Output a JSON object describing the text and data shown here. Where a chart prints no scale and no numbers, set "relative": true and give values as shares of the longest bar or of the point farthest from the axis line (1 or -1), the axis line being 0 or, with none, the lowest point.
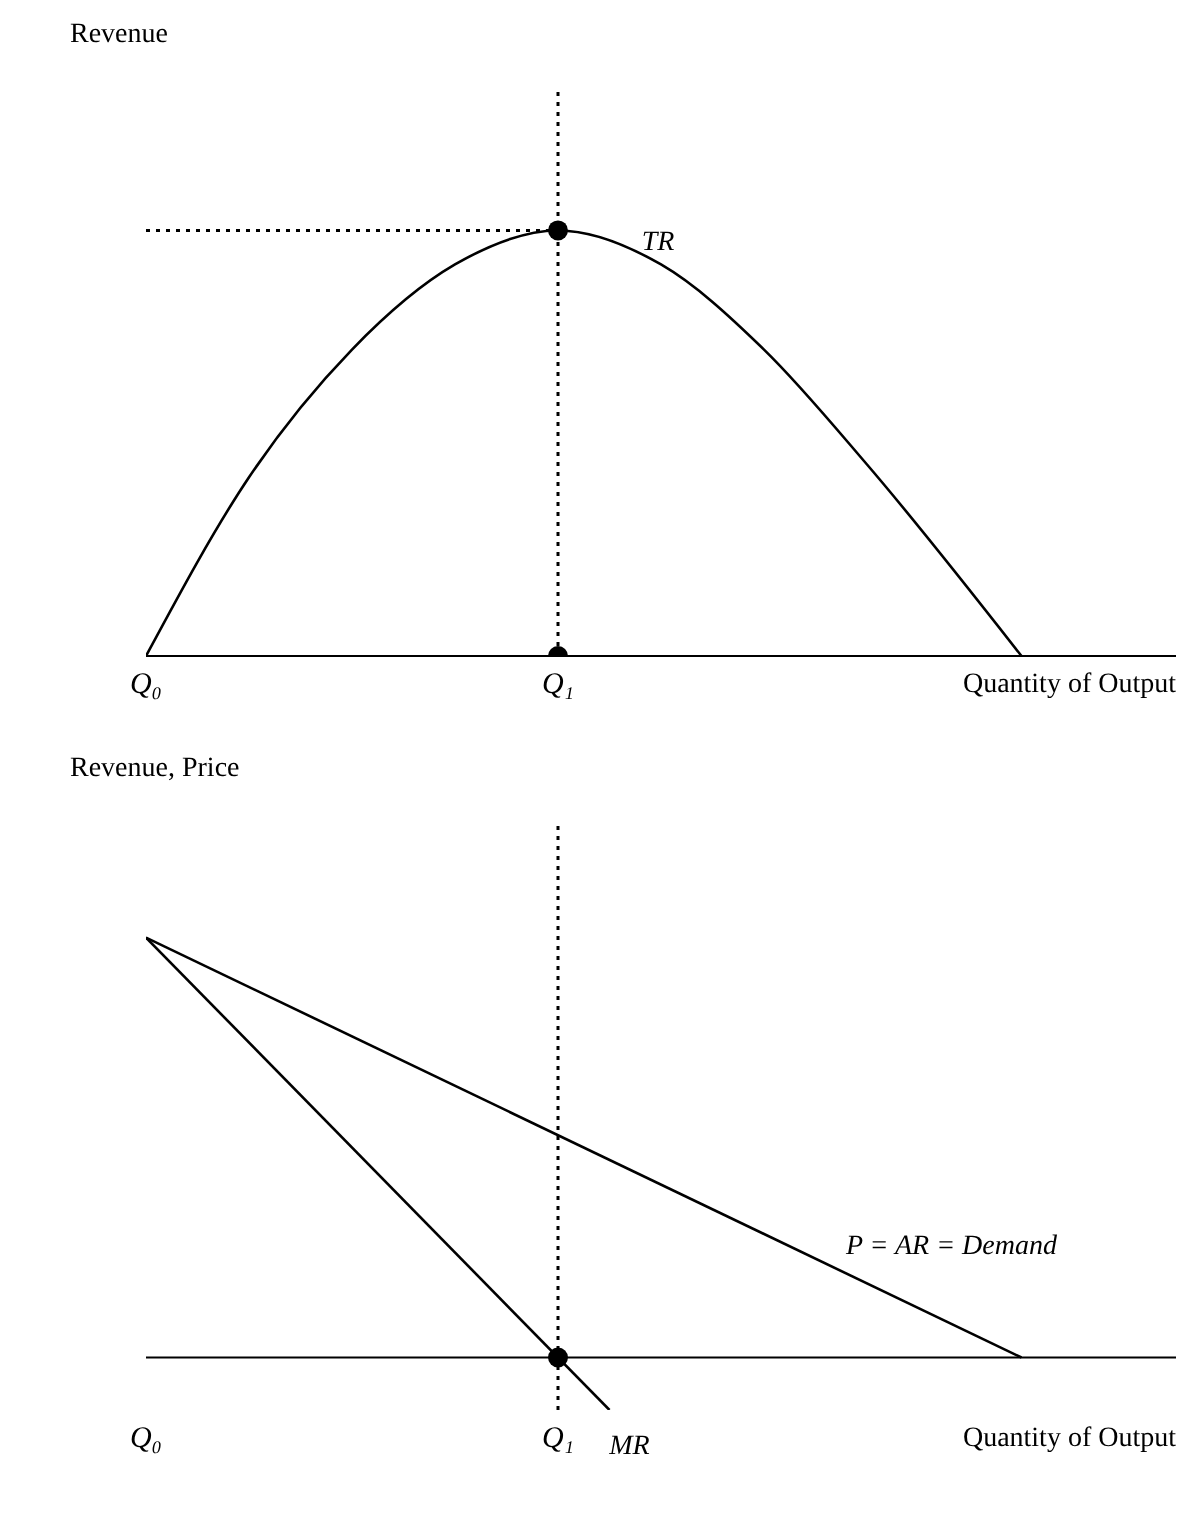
{
  "chart_data": [
    {
      "type": "line",
      "relative": true,
      "ylabel": "Revenue",
      "xlabel": "Quantity of Output",
      "tick_labels": "x",
      "categories": [
        "Q₀",
        null,
        null,
        null,
        null,
        null,
        null,
        null,
        "Q₁",
        null,
        null,
        null,
        null,
        null,
        null,
        null,
        null,
        null,
        null,
        null,
        null
      ],
      "series": [
        {
          "name": "TR",
          "color": "#000000",
          "values": [
            0,
            null,
            0.42,
            null,
            0.72,
            null,
            0.92,
            null,
            1,
            null,
            0.92,
            null,
            0.72,
            null,
            0.45,
            null,
            null,
            0,
            null,
            null,
            null
          ]
        },
        {
          "type": "scatter",
          "marker": "circle",
          "color": "#000000",
          "values": [
            null,
            null,
            null,
            null,
            null,
            null,
            null,
            null,
            1,
            null,
            null,
            null,
            null,
            null,
            null,
            null,
            null,
            null,
            null,
            null,
            null
          ]
        },
        {
          "type": "scatter",
          "marker": "circle",
          "color": "#000000",
          "values": [
            null,
            null,
            null,
            null,
            null,
            null,
            null,
            null,
            0,
            null,
            null,
            null,
            null,
            null,
            null,
            null,
            null,
            null,
            null,
            null,
            null
          ]
        }
      ],
      "ref_lines": [
        {
          "axis": "y",
          "value": 1,
          "color": "#000000",
          "line_style": "dotted"
        },
        {
          "axis": "x",
          "value": "Q₁",
          "color": "#000000",
          "line_style": "dotted"
        }
      ]
    },
    {
      "type": "line",
      "relative": true,
      "ylabel": "Revenue, Price",
      "xlabel": "Quantity of Output",
      "tick_labels": "x",
      "categories": [
        "Q₀",
        null,
        null,
        null,
        null,
        null,
        null,
        null,
        "Q₁",
        null,
        null,
        null,
        null,
        null,
        null,
        null,
        null,
        null,
        null,
        null,
        null
      ],
      "series": [
        {
          "name": "P = AR = Demand",
          "color": "#000000",
          "values": [
            1,
            null,
            null,
            null,
            null,
            null,
            null,
            null,
            null,
            null,
            null,
            null,
            null,
            null,
            null,
            null,
            null,
            0,
            null,
            null,
            null
          ]
        },
        {
          "name": "MR",
          "color": "#000000",
          "values": [
            1,
            null,
            null,
            null,
            null,
            null,
            null,
            null,
            null,
            -0.125,
            null,
            null,
            null,
            null,
            null,
            null,
            null,
            null,
            null,
            null,
            null
          ]
        },
        {
          "type": "scatter",
          "marker": "circle",
          "color": "#000000",
          "values": [
            null,
            null,
            null,
            null,
            null,
            null,
            null,
            null,
            0,
            null,
            null,
            null,
            null,
            null,
            null,
            null,
            null,
            null,
            null,
            null,
            null
          ]
        }
      ],
      "ref_lines": [
        {
          "axis": "x",
          "value": "Q₁",
          "color": "#000000",
          "line_style": "dotted"
        }
      ]
    }
  ]
}
